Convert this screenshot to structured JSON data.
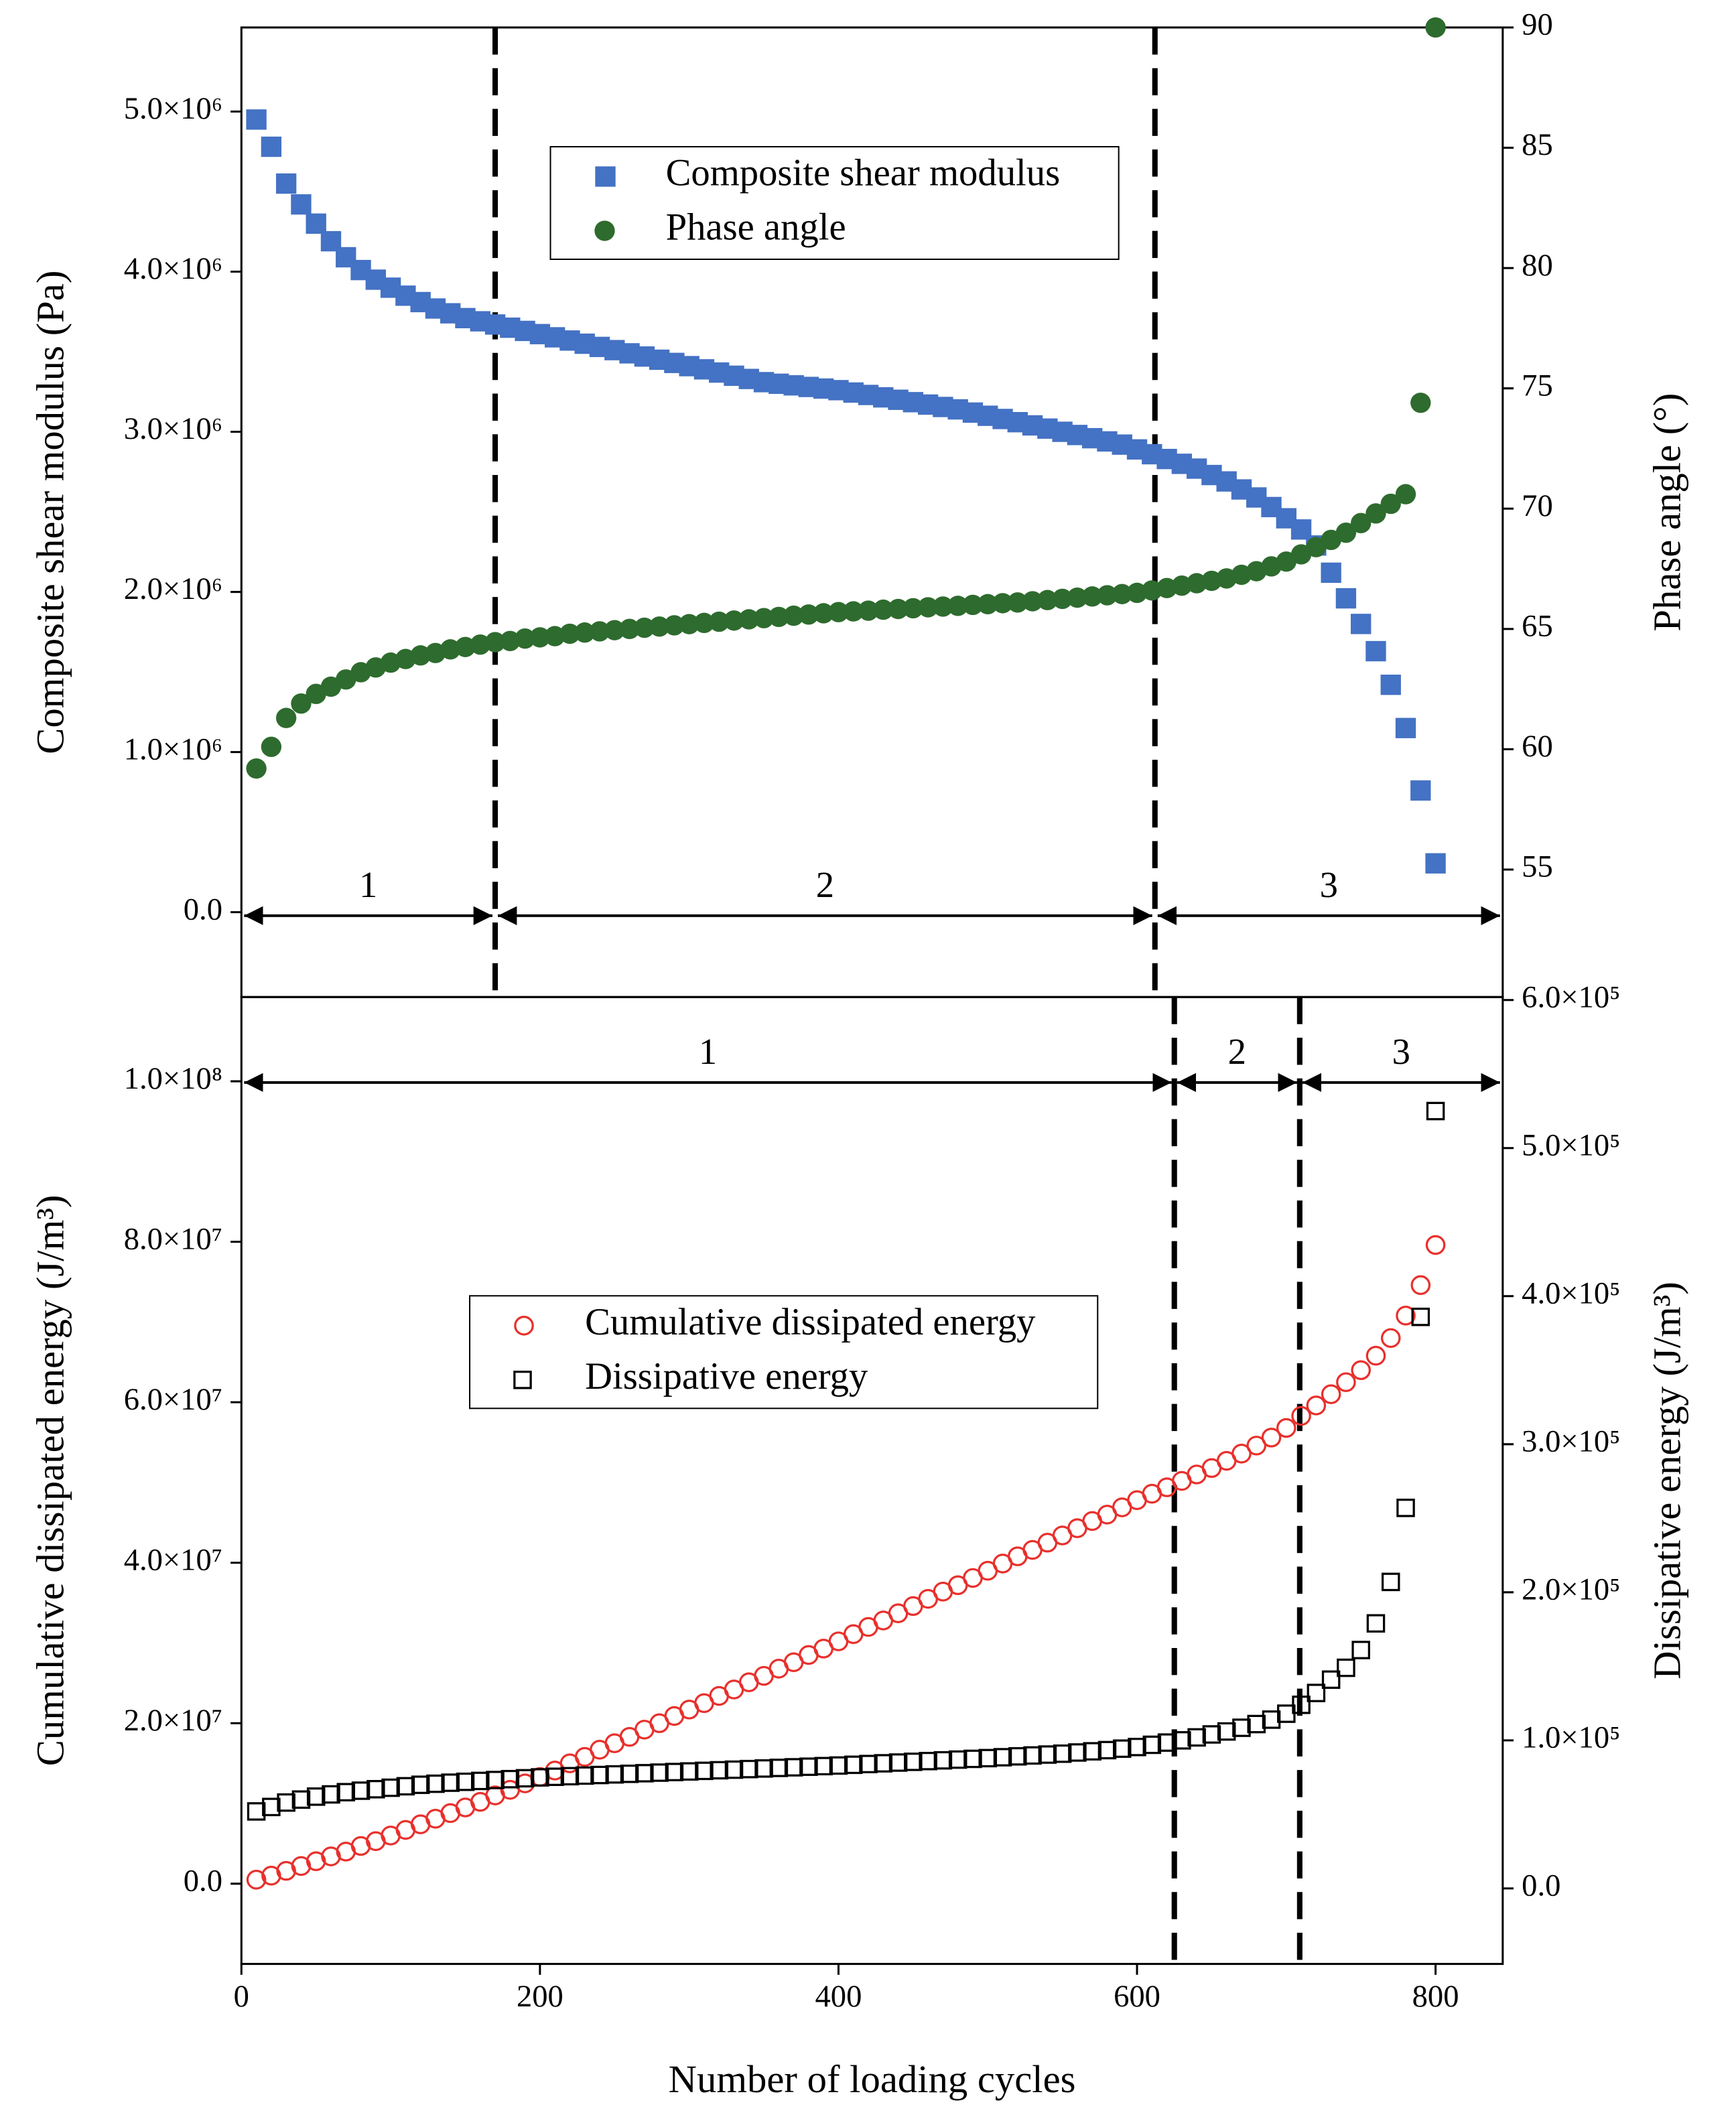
{
  "chart_data": [
    {
      "type": "scatter",
      "ylabel": "Composite shear modulus (Pa)",
      "y2label": "Phase angle (°)",
      "xlim": [
        0,
        845
      ],
      "ylim": [
        -530000,
        5525000
      ],
      "y2lim": [
        49.7,
        90
      ],
      "yticks": [
        {
          "value": 0,
          "label": "0.0"
        },
        {
          "value": 1000000,
          "label": "1.0×10⁶"
        },
        {
          "value": 2000000,
          "label": "2.0×10⁶"
        },
        {
          "value": 3000000,
          "label": "3.0×10⁶"
        },
        {
          "value": 4000000,
          "label": "4.0×10⁶"
        },
        {
          "value": 5000000,
          "label": "5.0×10⁶"
        }
      ],
      "y2ticks": [
        55,
        60,
        65,
        70,
        75,
        80,
        85,
        90
      ],
      "legend": "upper center",
      "boundaries": [
        170,
        612
      ],
      "regions": [
        "1",
        "2",
        "3"
      ],
      "x": [
        10,
        20,
        30,
        40,
        50,
        60,
        70,
        80,
        90,
        100,
        110,
        120,
        130,
        140,
        150,
        160,
        170,
        180,
        190,
        200,
        210,
        220,
        230,
        240,
        250,
        260,
        270,
        280,
        290,
        300,
        310,
        320,
        330,
        340,
        350,
        360,
        370,
        380,
        390,
        400,
        410,
        420,
        430,
        440,
        450,
        460,
        470,
        480,
        490,
        500,
        510,
        520,
        530,
        540,
        550,
        560,
        570,
        580,
        590,
        600,
        610,
        620,
        630,
        640,
        650,
        660,
        670,
        680,
        690,
        700,
        710,
        720,
        730,
        740,
        750,
        760,
        770,
        780,
        790,
        800
      ],
      "series": [
        {
          "name": "Composite shear modulus",
          "color": "#4472c4",
          "marker": "square",
          "filled": true,
          "values": [
            4950000,
            4780000,
            4550000,
            4420000,
            4300000,
            4190000,
            4090000,
            4010000,
            3950000,
            3900000,
            3850000,
            3810000,
            3770000,
            3740000,
            3710000,
            3690000,
            3670000,
            3650000,
            3630000,
            3610000,
            3590000,
            3570000,
            3550000,
            3530000,
            3510000,
            3490000,
            3470000,
            3450000,
            3430000,
            3410000,
            3390000,
            3370000,
            3350000,
            3330000,
            3310000,
            3300000,
            3290000,
            3280000,
            3270000,
            3260000,
            3245000,
            3230000,
            3215000,
            3200000,
            3185000,
            3170000,
            3155000,
            3140000,
            3120000,
            3100000,
            3080000,
            3060000,
            3040000,
            3020000,
            3000000,
            2980000,
            2960000,
            2940000,
            2920000,
            2890000,
            2860000,
            2830000,
            2800000,
            2770000,
            2730000,
            2690000,
            2640000,
            2590000,
            2530000,
            2460000,
            2390000,
            2290000,
            2120000,
            1960000,
            1800000,
            1630000,
            1420000,
            1150000,
            760000,
            305000
          ]
        },
        {
          "name": "Phase angle",
          "color": "#2e6b2e",
          "marker": "circle",
          "filled": true,
          "axis": "y2",
          "values": [
            59.2,
            60.1,
            61.3,
            61.9,
            62.3,
            62.6,
            62.9,
            63.2,
            63.4,
            63.6,
            63.75,
            63.9,
            64.0,
            64.15,
            64.25,
            64.35,
            64.45,
            64.5,
            64.6,
            64.65,
            64.7,
            64.8,
            64.85,
            64.9,
            64.95,
            65.0,
            65.05,
            65.1,
            65.15,
            65.2,
            65.25,
            65.3,
            65.35,
            65.4,
            65.45,
            65.5,
            65.55,
            65.6,
            65.65,
            65.7,
            65.73,
            65.76,
            65.8,
            65.83,
            65.86,
            65.9,
            65.93,
            65.96,
            66.0,
            66.03,
            66.07,
            66.1,
            66.15,
            66.2,
            66.25,
            66.3,
            66.35,
            66.4,
            66.45,
            66.5,
            66.6,
            66.7,
            66.8,
            66.9,
            67.0,
            67.1,
            67.25,
            67.4,
            67.6,
            67.8,
            68.1,
            68.4,
            68.7,
            69.0,
            69.4,
            69.8,
            70.2,
            70.6,
            74.4,
            90.0
          ]
        }
      ]
    },
    {
      "type": "scatter",
      "xlabel": "Number of loading cycles",
      "ylabel": "Cumulative dissipated energy (J/m³)",
      "y2label": "Dissipative energy (J/m³)",
      "xlim": [
        0,
        845
      ],
      "ylim": [
        -10000000,
        110500000
      ],
      "y2lim": [
        -51000,
        602000
      ],
      "xticks": [
        0,
        200,
        400,
        600,
        800
      ],
      "yticks": [
        {
          "value": 0,
          "label": "0.0"
        },
        {
          "value": 20000000,
          "label": "2.0×10⁷"
        },
        {
          "value": 40000000,
          "label": "4.0×10⁷"
        },
        {
          "value": 60000000,
          "label": "6.0×10⁷"
        },
        {
          "value": 80000000,
          "label": "8.0×10⁷"
        },
        {
          "value": 100000000,
          "label": "1.0×10⁸"
        }
      ],
      "y2ticks": [
        {
          "value": 0,
          "label": "0.0"
        },
        {
          "value": 100000,
          "label": "1.0×10⁵"
        },
        {
          "value": 200000,
          "label": "2.0×10⁵"
        },
        {
          "value": 300000,
          "label": "3.0×10⁵"
        },
        {
          "value": 400000,
          "label": "4.0×10⁵"
        },
        {
          "value": 500000,
          "label": "5.0×10⁵"
        },
        {
          "value": 600000,
          "label": "6.0×10⁵"
        }
      ],
      "legend": "center left",
      "boundaries": [
        625,
        709
      ],
      "regions": [
        "1",
        "2",
        "3"
      ],
      "x": [
        10,
        20,
        30,
        40,
        50,
        60,
        70,
        80,
        90,
        100,
        110,
        120,
        130,
        140,
        150,
        160,
        170,
        180,
        190,
        200,
        210,
        220,
        230,
        240,
        250,
        260,
        270,
        280,
        290,
        300,
        310,
        320,
        330,
        340,
        350,
        360,
        370,
        380,
        390,
        400,
        410,
        420,
        430,
        440,
        450,
        460,
        470,
        480,
        490,
        500,
        510,
        520,
        530,
        540,
        550,
        560,
        570,
        580,
        590,
        600,
        610,
        620,
        630,
        640,
        650,
        660,
        670,
        680,
        690,
        700,
        710,
        720,
        730,
        740,
        750,
        760,
        770,
        780,
        790,
        800
      ],
      "series": [
        {
          "name": "Cumulative dissipated energy",
          "color": "#e8302c",
          "marker": "circle",
          "filled": false,
          "values": [
            500000,
            1000000,
            1600000,
            2200000,
            2800000,
            3400000,
            4000000,
            4700000,
            5300000,
            6000000,
            6700000,
            7400000,
            8100000,
            8800000,
            9500000,
            10200000,
            11000000,
            11700000,
            12500000,
            13300000,
            14100000,
            15000000,
            15800000,
            16700000,
            17500000,
            18300000,
            19200000,
            20000000,
            20900000,
            21700000,
            22500000,
            23400000,
            24200000,
            25100000,
            25900000,
            26800000,
            27600000,
            28500000,
            29300000,
            30200000,
            31100000,
            32000000,
            32800000,
            33700000,
            34600000,
            35500000,
            36400000,
            37200000,
            38100000,
            39000000,
            39900000,
            40800000,
            41600000,
            42500000,
            43400000,
            44300000,
            45200000,
            46000000,
            46900000,
            47800000,
            48600000,
            49400000,
            50200000,
            51000000,
            51800000,
            52700000,
            53600000,
            54600000,
            55600000,
            56800000,
            58300000,
            59600000,
            61000000,
            62500000,
            64000000,
            65800000,
            68000000,
            70800000,
            74600000,
            79600000
          ]
        },
        {
          "name": "Dissipative energy",
          "color": "#000000",
          "marker": "square",
          "filled": false,
          "axis": "y2",
          "values": [
            52000,
            55000,
            58000,
            60000,
            62000,
            63500,
            65000,
            66000,
            67000,
            68000,
            69000,
            70000,
            70700,
            71400,
            72000,
            72600,
            73200,
            73800,
            74400,
            75000,
            75400,
            75800,
            76200,
            76600,
            77000,
            77400,
            77800,
            78200,
            78600,
            79000,
            79400,
            79800,
            80200,
            80600,
            81000,
            81400,
            81800,
            82200,
            82600,
            83000,
            83500,
            84000,
            84500,
            85000,
            85500,
            86000,
            86500,
            87000,
            87500,
            88000,
            88600,
            89200,
            89800,
            90400,
            91000,
            91800,
            92600,
            93400,
            94400,
            95500,
            97000,
            98500,
            100000,
            102000,
            104000,
            106000,
            108500,
            111000,
            114000,
            118000,
            124000,
            132000,
            141000,
            149000,
            161000,
            179000,
            207000,
            257000,
            386000,
            525000
          ]
        }
      ]
    }
  ]
}
